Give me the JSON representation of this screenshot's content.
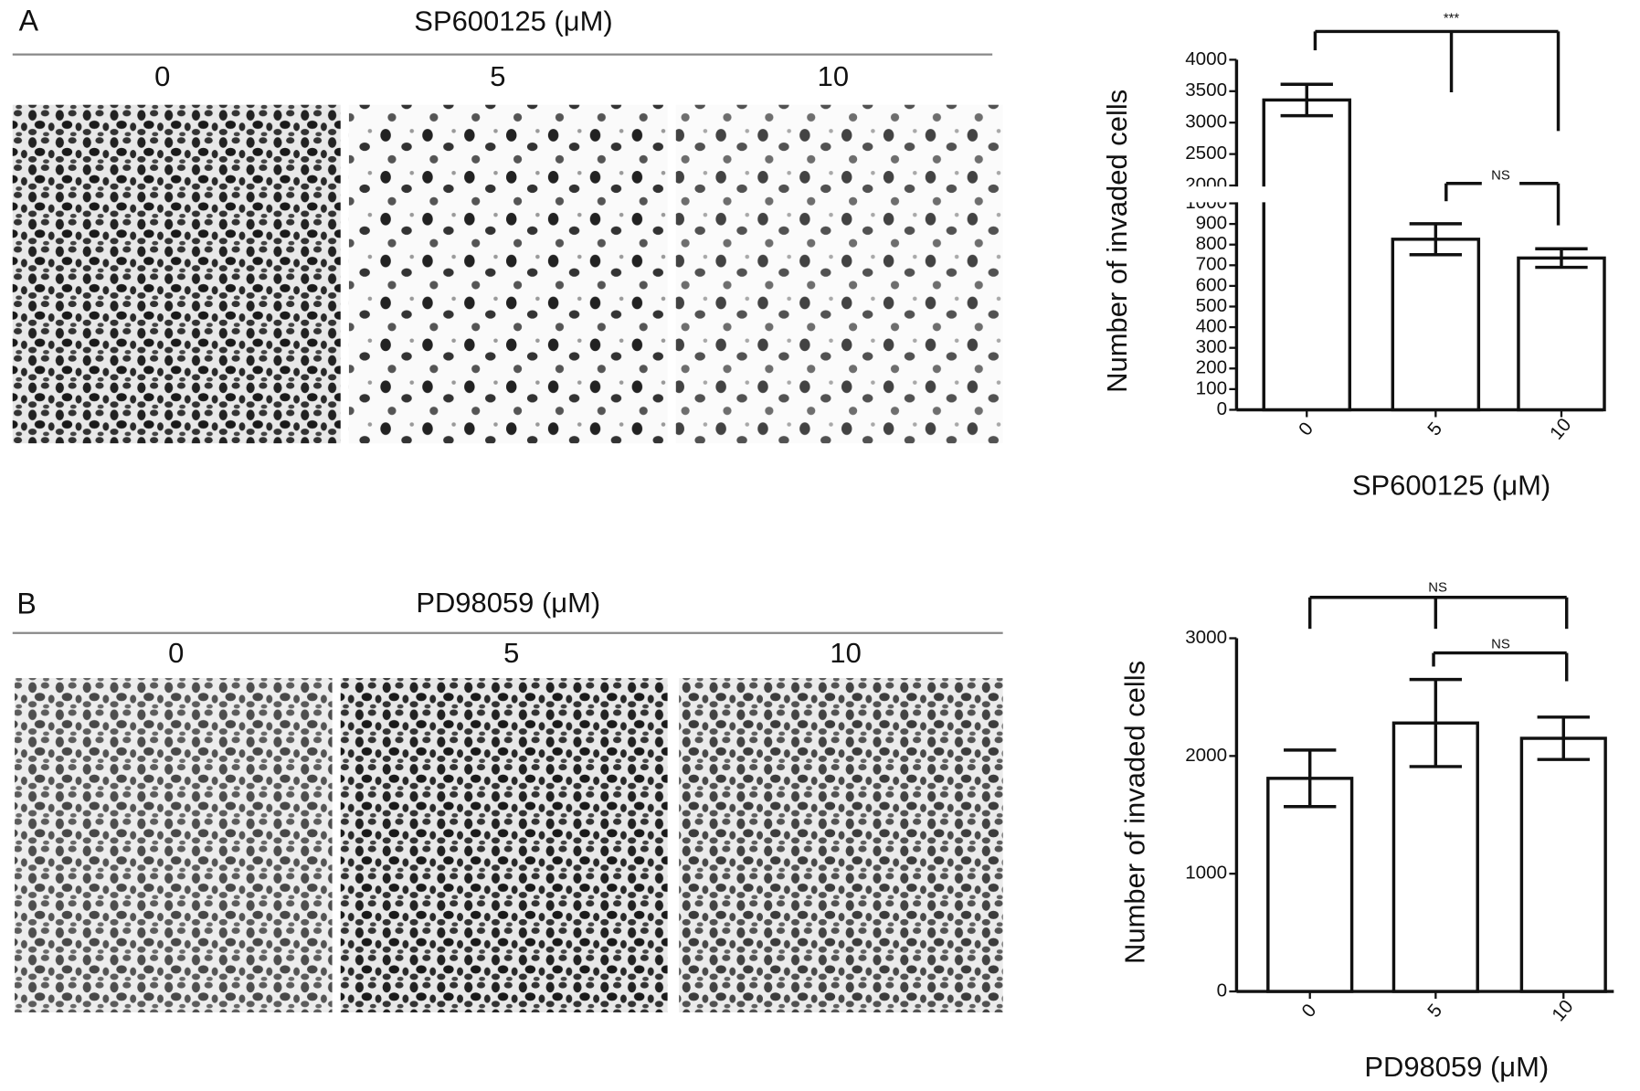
{
  "panels": [
    {
      "label": "A",
      "treatment": "SP600125 (μM)",
      "doses": [
        "0",
        "5",
        "10"
      ]
    },
    {
      "label": "B",
      "treatment": "PD98059 (μM)",
      "doses": [
        "0",
        "5",
        "10"
      ]
    }
  ],
  "chart_data": [
    {
      "type": "bar",
      "y_label": "Number of invaded cells",
      "x_label": "SP600125 (μM)",
      "categories": [
        "0",
        "5",
        "10"
      ],
      "values": [
        3360,
        826,
        735
      ],
      "errors": [
        250,
        75,
        45
      ],
      "color": "#ffffff",
      "ylim": [
        0,
        4000
      ],
      "y_break": [
        1000,
        2000
      ],
      "yticks": [
        0,
        100,
        200,
        300,
        400,
        500,
        600,
        700,
        800,
        900,
        1000,
        2000,
        2500,
        3000,
        3500,
        4000
      ],
      "annotations": [
        "***",
        "NS"
      ]
    },
    {
      "type": "bar",
      "y_label": "Number of invaded cells",
      "x_label": "PD98059 (μM)",
      "categories": [
        "0",
        "5",
        "10"
      ],
      "values": [
        1810,
        2280,
        2150
      ],
      "errors": [
        240,
        370,
        180
      ],
      "color": "#ffffff",
      "ylim": [
        0,
        3000
      ],
      "yticks": [
        0,
        1000,
        2000,
        3000
      ],
      "annotations": [
        "NS",
        "NS"
      ]
    }
  ]
}
